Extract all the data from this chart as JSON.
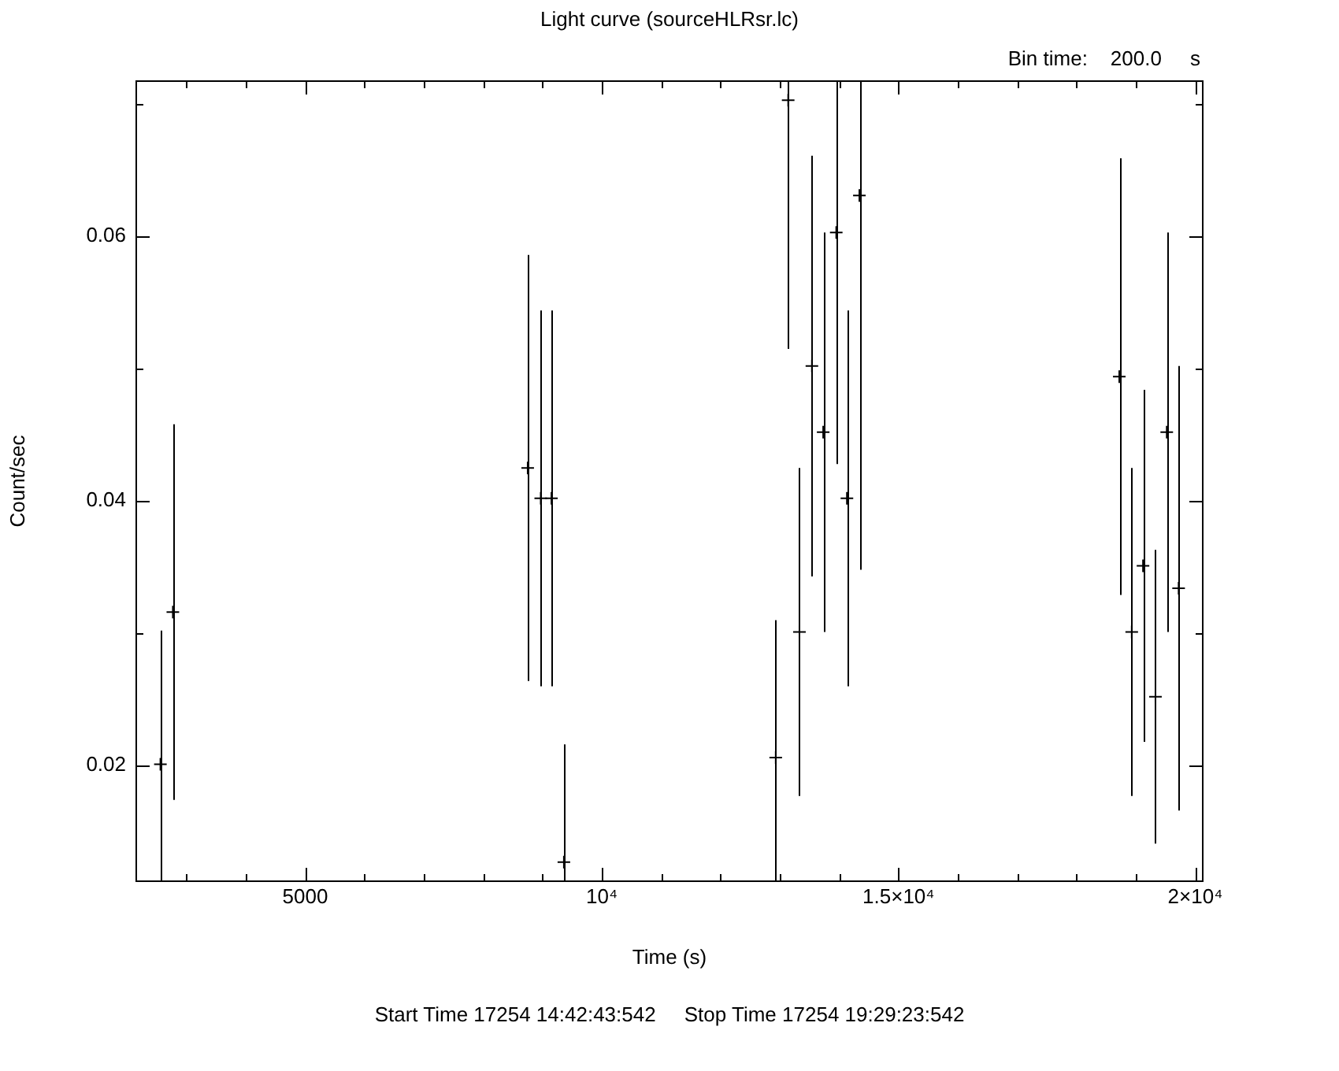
{
  "chart_data": {
    "type": "scatter",
    "title": "Light curve (sourceHLRsr.lc)",
    "xlabel": "Time (s)",
    "ylabel": "Count/sec",
    "annotations": [
      "Bin time:    200.0     s",
      "Start Time 17254 14:42:43:542     Stop Time 17254 19:29:23:542"
    ],
    "x": [
      2560,
      2770,
      8750,
      8970,
      9150,
      9360,
      12930,
      13140,
      13330,
      13540,
      13730,
      13950,
      14130,
      14340,
      18720,
      18930,
      19120,
      19330,
      19520,
      19720
    ],
    "values": [
      0.0201,
      0.0316,
      0.0425,
      0.0402,
      0.0402,
      0.0127,
      0.0206,
      0.0703,
      0.0301,
      0.0502,
      0.0452,
      0.0603,
      0.0402,
      0.0631,
      0.0494,
      0.0301,
      0.0351,
      0.0252,
      0.0452,
      0.0334
    ],
    "errors": [
      [
        0.0112,
        0.0302
      ],
      0.0142,
      0.0161,
      0.0142,
      0.0142,
      [
        0.0112,
        0.0216
      ],
      [
        0.0112,
        0.031
      ],
      [
        0.0515,
        0.0718
      ],
      0.0124,
      0.0159,
      0.0151,
      [
        0.0428,
        0.0718
      ],
      0.0142,
      [
        0.0348,
        0.0718
      ],
      0.0165,
      0.0124,
      0.0133,
      0.0111,
      0.0151,
      0.0168
    ],
    "color": "#000000",
    "marker": "cross",
    "legend": false,
    "grid": false,
    "xlim": [
      2140,
      20140
    ],
    "ylim": [
      0.0112,
      0.0718
    ],
    "xticks": [
      {
        "value": 3000,
        "label": null
      },
      {
        "value": 4000,
        "label": null
      },
      5000,
      {
        "value": 6000,
        "label": null
      },
      {
        "value": 7000,
        "label": null
      },
      {
        "value": 8000,
        "label": null
      },
      {
        "value": 9000,
        "label": null
      },
      {
        "value": 10000,
        "label": "10⁴"
      },
      {
        "value": 11000,
        "label": null
      },
      {
        "value": 12000,
        "label": null
      },
      {
        "value": 13000,
        "label": null
      },
      {
        "value": 14000,
        "label": null
      },
      {
        "value": 15000,
        "label": "1.5×10⁴"
      },
      {
        "value": 16000,
        "label": null
      },
      {
        "value": 17000,
        "label": null
      },
      {
        "value": 18000,
        "label": null
      },
      {
        "value": 19000,
        "label": null
      },
      {
        "value": 20000,
        "label": "2×10⁴"
      }
    ],
    "yticks": [
      0.02,
      {
        "value": 0.03,
        "label": null
      },
      0.04,
      {
        "value": 0.05,
        "label": null
      },
      0.06,
      {
        "value": 0.07,
        "label": null
      }
    ]
  }
}
